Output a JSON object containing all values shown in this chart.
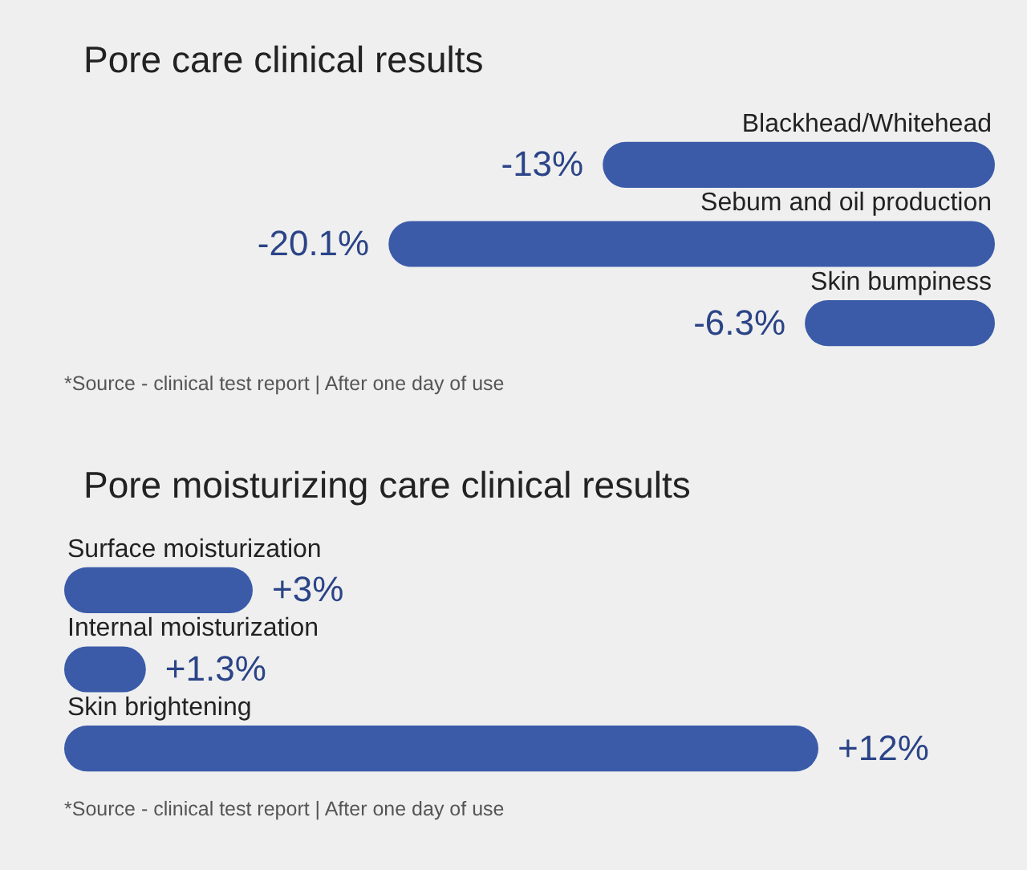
{
  "chart_data": [
    {
      "type": "bar",
      "orientation": "horizontal",
      "title": "Pore care clinical results",
      "categories": [
        "Blackhead/Whitehead",
        "Sebum and oil production",
        "Skin bumpiness"
      ],
      "values": [
        -13,
        -20.1,
        -6.3
      ],
      "value_labels": [
        "-13%",
        "-20.1%",
        "-6.3%"
      ],
      "color": "#3b5ba9",
      "tick_labels": "y",
      "annotations": [
        "*Source - clinical test report | After one day of use"
      ]
    },
    {
      "type": "bar",
      "orientation": "horizontal",
      "title": "Pore moisturizing care clinical results",
      "categories": [
        "Surface moisturization",
        "Internal moisturization",
        "Skin brightening"
      ],
      "values": [
        3,
        1.3,
        12
      ],
      "value_labels": [
        "+3%",
        "+1.3%",
        "+12%"
      ],
      "color": "#3b5ba9",
      "tick_labels": "y",
      "annotations": [
        "*Source - clinical test report | After one day of use"
      ]
    }
  ]
}
